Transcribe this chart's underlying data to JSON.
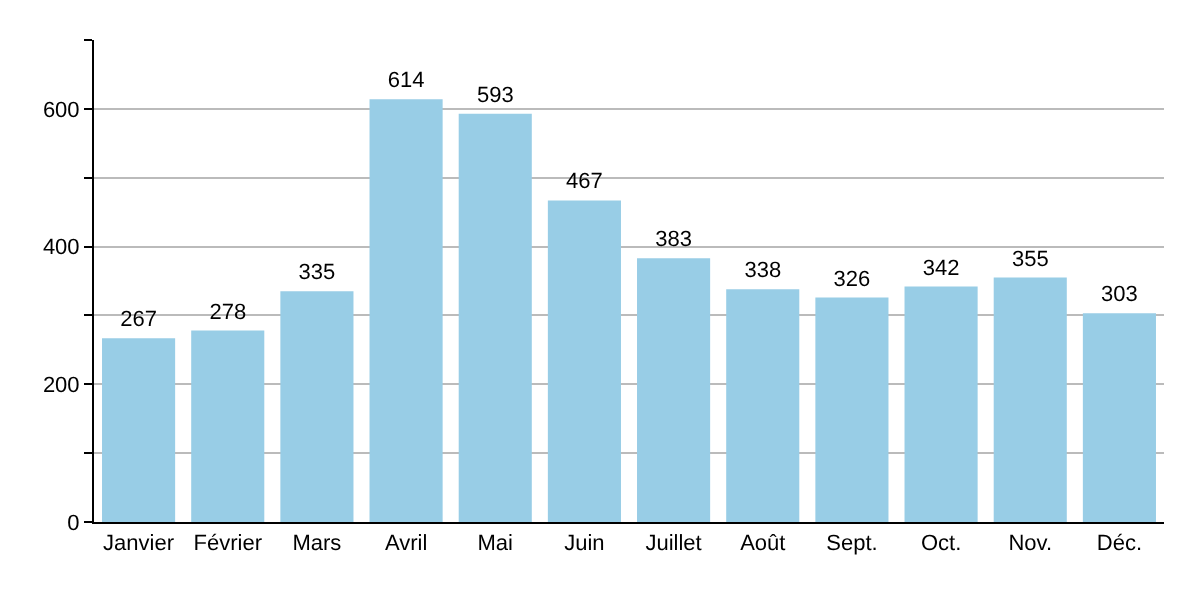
{
  "chart_data": {
    "type": "bar",
    "categories": [
      "Janvier",
      "Février",
      "Mars",
      "Avril",
      "Mai",
      "Juin",
      "Juillet",
      "Août",
      "Sept.",
      "Oct.",
      "Nov.",
      "Déc."
    ],
    "values": [
      267,
      278,
      335,
      614,
      593,
      467,
      383,
      338,
      326,
      342,
      355,
      303
    ],
    "color": "#98cde6",
    "ylim": [
      0,
      700
    ],
    "yticks": [
      0,
      {
        "value": 100,
        "label": null
      },
      200,
      {
        "value": 300,
        "label": null
      },
      400,
      {
        "value": 500,
        "label": null
      },
      600,
      {
        "value": 700,
        "label": null
      }
    ],
    "grid": true,
    "data_labels": true
  }
}
